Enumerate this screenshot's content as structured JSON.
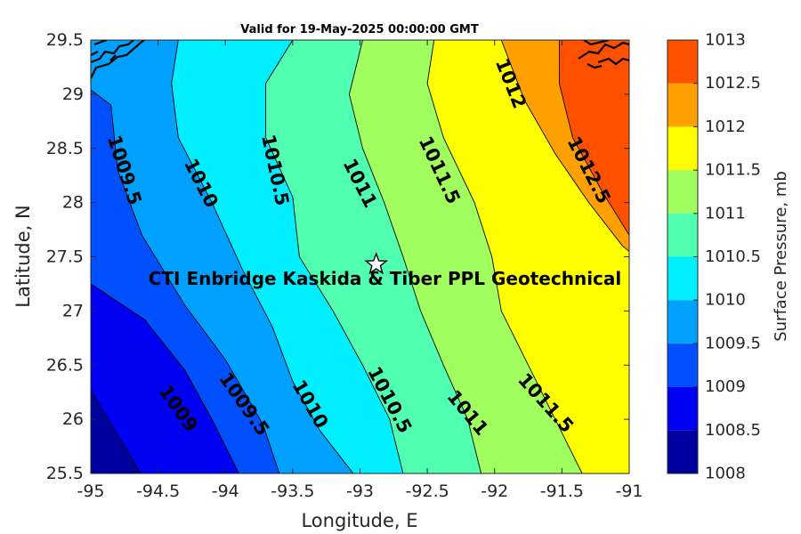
{
  "chart_data": {
    "type": "contour",
    "title": "Valid for 19-May-2025 00:00:00 GMT",
    "xlabel": "Longitude, E",
    "ylabel": "Latitude, N",
    "xlim": [
      -95,
      -91
    ],
    "ylim": [
      25.5,
      29.5
    ],
    "xticks": [
      "-95",
      "-94.5",
      "-94",
      "-93.5",
      "-93",
      "-92.5",
      "-92",
      "-91.5",
      "-91"
    ],
    "yticks": [
      "25.5",
      "26",
      "26.5",
      "27",
      "27.5",
      "28",
      "28.5",
      "29",
      "29.5"
    ],
    "colorbar": {
      "label": "Surface Pressure, mb",
      "levels": [
        1008,
        1008.5,
        1009,
        1009.5,
        1010,
        1010.5,
        1011,
        1011.5,
        1012,
        1012.5,
        1013
      ],
      "tick_labels": [
        "1008",
        "1008.5",
        "1009",
        "1009.5",
        "1010",
        "1010.5",
        "1011",
        "1011.5",
        "1012",
        "1012.5",
        "1013"
      ],
      "colors": [
        "#00009f",
        "#0000f2",
        "#0050ff",
        "#00a0ff",
        "#00efff",
        "#50ffaf",
        "#a0ff5f",
        "#ffff00",
        "#ffa000",
        "#ff5000",
        "#ff0000"
      ]
    },
    "contours": [
      {
        "level": 1008.5,
        "points": [
          [
            -95.0,
            26.27
          ],
          [
            -94.63,
            25.5
          ]
        ]
      },
      {
        "level": 1009,
        "points": [
          [
            -95.0,
            27.25
          ],
          [
            -94.6,
            26.92
          ],
          [
            -94.3,
            26.45
          ],
          [
            -94.1,
            26.0
          ],
          [
            -93.9,
            25.5
          ]
        ]
      },
      {
        "level": 1009.5,
        "points": [
          [
            -95.0,
            29.04
          ],
          [
            -94.85,
            28.9
          ],
          [
            -94.8,
            28.3
          ],
          [
            -94.62,
            27.7
          ],
          [
            -94.3,
            27.05
          ],
          [
            -94.0,
            26.55
          ],
          [
            -93.72,
            25.95
          ],
          [
            -93.6,
            25.5
          ]
        ]
      },
      {
        "level": 1010,
        "points": [
          [
            -94.35,
            29.5
          ],
          [
            -94.4,
            29.1
          ],
          [
            -94.35,
            28.6
          ],
          [
            -94.1,
            28.0
          ],
          [
            -93.88,
            27.4
          ],
          [
            -93.65,
            26.85
          ],
          [
            -93.5,
            26.35
          ],
          [
            -93.3,
            25.9
          ],
          [
            -93.05,
            25.5
          ]
        ]
      },
      {
        "level": 1010.5,
        "points": [
          [
            -93.5,
            29.5
          ],
          [
            -93.7,
            29.1
          ],
          [
            -93.7,
            28.6
          ],
          [
            -93.5,
            28.05
          ],
          [
            -93.45,
            27.5
          ],
          [
            -93.2,
            27.0
          ],
          [
            -92.98,
            26.5
          ],
          [
            -92.78,
            26.0
          ],
          [
            -92.68,
            25.5
          ]
        ]
      },
      {
        "level": 1011,
        "points": [
          [
            -92.98,
            29.5
          ],
          [
            -93.08,
            29.0
          ],
          [
            -92.98,
            28.5
          ],
          [
            -92.82,
            28.0
          ],
          [
            -92.68,
            27.5
          ],
          [
            -92.55,
            27.0
          ],
          [
            -92.38,
            26.5
          ],
          [
            -92.2,
            26.0
          ],
          [
            -92.1,
            25.5
          ]
        ]
      },
      {
        "level": 1011.5,
        "points": [
          [
            -92.45,
            29.5
          ],
          [
            -92.5,
            29.1
          ],
          [
            -92.38,
            28.6
          ],
          [
            -92.15,
            28.0
          ],
          [
            -92.02,
            27.5
          ],
          [
            -91.95,
            27.0
          ],
          [
            -91.75,
            26.5
          ],
          [
            -91.55,
            26.0
          ],
          [
            -91.35,
            25.5
          ]
        ]
      },
      {
        "level": 1012,
        "points": [
          [
            -91.95,
            29.5
          ],
          [
            -91.78,
            28.95
          ],
          [
            -91.55,
            28.45
          ],
          [
            -91.3,
            28.0
          ],
          [
            -91.05,
            27.6
          ],
          [
            -91.0,
            27.55
          ]
        ]
      },
      {
        "level": 1012.5,
        "points": [
          [
            -91.52,
            29.5
          ],
          [
            -91.52,
            29.1
          ],
          [
            -91.42,
            28.6
          ],
          [
            -91.2,
            28.1
          ],
          [
            -91.0,
            27.7
          ]
        ]
      }
    ],
    "contour_labels": [
      {
        "text": "1009.5",
        "lon": -94.75,
        "lat": 28.3,
        "angle": 72
      },
      {
        "text": "1010",
        "lon": -94.18,
        "lat": 28.18,
        "angle": 63
      },
      {
        "text": "1010.5",
        "lon": -93.63,
        "lat": 28.3,
        "angle": 78
      },
      {
        "text": "1011",
        "lon": -93.0,
        "lat": 28.18,
        "angle": 63
      },
      {
        "text": "1011.5",
        "lon": -92.41,
        "lat": 28.3,
        "angle": 65
      },
      {
        "text": "1012",
        "lon": -91.88,
        "lat": 29.1,
        "angle": 68
      },
      {
        "text": "1012.5",
        "lon": -91.3,
        "lat": 28.3,
        "angle": 63
      },
      {
        "text": "1009",
        "lon": -94.35,
        "lat": 26.1,
        "angle": 55
      },
      {
        "text": "1009.5",
        "lon": -93.86,
        "lat": 26.14,
        "angle": 55
      },
      {
        "text": "1010",
        "lon": -93.37,
        "lat": 26.14,
        "angle": 60
      },
      {
        "text": "1010.5",
        "lon": -92.78,
        "lat": 26.18,
        "angle": 62
      },
      {
        "text": "1011",
        "lon": -92.2,
        "lat": 26.06,
        "angle": 50
      },
      {
        "text": "1011.5",
        "lon": -91.62,
        "lat": 26.15,
        "angle": 48
      }
    ],
    "station": {
      "label": "CTI Enbridge  Kaskida & Tiber PPL Geotechnical",
      "lon": -92.88,
      "lat": 27.43
    }
  }
}
